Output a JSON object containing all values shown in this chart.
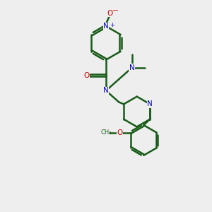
{
  "bg_color": "#eeeeee",
  "bond_color": "#1a5c1a",
  "N_color": "#0000cc",
  "O_color": "#cc0000",
  "figsize": [
    3.0,
    3.0
  ],
  "dpi": 100,
  "xlim": [
    0,
    10
  ],
  "ylim": [
    0,
    10
  ]
}
